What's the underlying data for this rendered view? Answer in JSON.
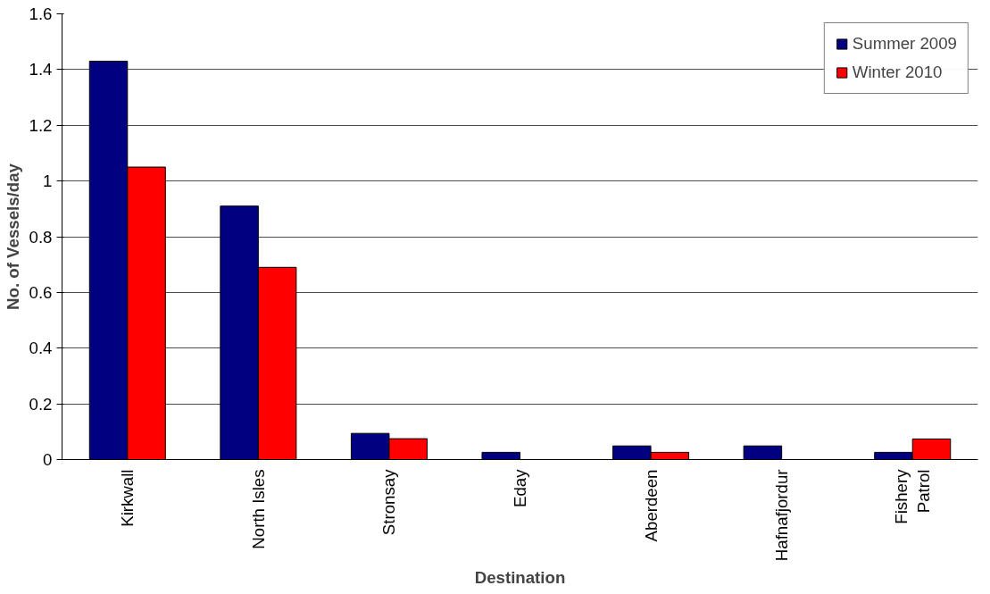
{
  "chart_data": {
    "type": "bar",
    "xlabel": "Destination",
    "ylabel": "No. of Vessels/day",
    "categories": [
      "Kirkwall",
      "North Isles",
      "Stronsay",
      "Eday",
      "Aberdeen",
      "Hafnafjordur",
      "Fishery\nPatrol"
    ],
    "series": [
      {
        "name": "Summer 2009",
        "color": "#000080",
        "values": [
          1.43,
          0.91,
          0.094,
          0.026,
          0.049,
          0.049,
          0.026
        ]
      },
      {
        "name": "Winter 2010",
        "color": "#ff0000",
        "values": [
          1.05,
          0.69,
          0.075,
          0,
          0.026,
          0,
          0.074
        ]
      }
    ],
    "ylim": [
      0,
      1.6
    ],
    "yticks": [
      0,
      0.2,
      0.4,
      0.6,
      0.8,
      1,
      1.2,
      1.4,
      1.6
    ],
    "grid": "y",
    "legend": "top right"
  }
}
